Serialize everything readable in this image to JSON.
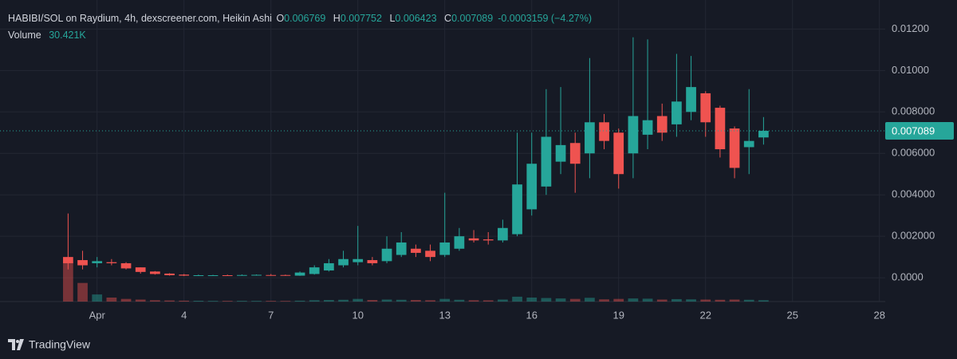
{
  "chart_data": {
    "type": "candlestick",
    "title": "HABIBI/SOL on Raydium, 4h, dexscreener.com, Heikin Ashi",
    "ohlc_keys": [
      "O",
      "H",
      "L",
      "C"
    ],
    "change_label": "-0.0003159 (−4.27%)",
    "x": [
      0,
      0.5,
      1,
      1.5,
      2,
      2.5,
      3,
      3.5,
      4,
      4.5,
      5,
      5.5,
      6,
      6.5,
      7,
      7.5,
      8,
      8.5,
      9,
      9.5,
      10,
      10.5,
      11,
      11.5,
      12,
      12.5,
      13,
      13.5,
      14,
      14.5,
      15,
      15.5,
      16,
      16.5,
      17,
      17.5,
      18,
      18.5,
      19,
      19.5,
      20,
      20.5,
      21,
      21.5,
      22,
      22.5,
      23,
      23.5,
      24
    ],
    "open": [
      0.001,
      0.00085,
      0.0007,
      0.00075,
      0.0007,
      0.0005,
      0.0003,
      0.0002,
      0.00015,
      0.0001,
      0.00011,
      0.00012,
      0.00011,
      0.00012,
      0.00013,
      0.00013,
      0.0001,
      0.00018,
      0.00035,
      0.0006,
      0.00075,
      0.00085,
      0.0008,
      0.0011,
      0.0014,
      0.0013,
      0.0011,
      0.0014,
      0.0019,
      0.00185,
      0.0018,
      0.0021,
      0.0033,
      0.0044,
      0.0056,
      0.0065,
      0.006,
      0.0075,
      0.007,
      0.006,
      0.0069,
      0.0078,
      0.0074,
      0.008,
      0.0089,
      0.0082,
      0.0072,
      0.0063,
      0.006769
    ],
    "high": [
      0.0031,
      0.0013,
      0.001,
      0.0009,
      0.00075,
      0.0005,
      0.00032,
      0.00022,
      0.00018,
      0.00015,
      0.00014,
      0.00015,
      0.00016,
      0.00016,
      0.00018,
      0.00015,
      0.0003,
      0.0006,
      0.0009,
      0.0013,
      0.0025,
      0.001,
      0.002,
      0.0022,
      0.0016,
      0.0016,
      0.0041,
      0.0024,
      0.0023,
      0.0022,
      0.0028,
      0.007,
      0.007,
      0.0091,
      0.0092,
      0.007,
      0.0106,
      0.0079,
      0.0072,
      0.0116,
      0.0115,
      0.0084,
      0.0108,
      0.0107,
      0.009,
      0.0083,
      0.0073,
      0.0091,
      0.007752
    ],
    "low": [
      0.0004,
      0.0004,
      0.0005,
      0.0006,
      0.0004,
      0.0002,
      0.00015,
      0.0001,
      8e-05,
      8e-05,
      9e-05,
      9e-05,
      0.0001,
      0.0001,
      0.0001,
      9e-05,
      9e-05,
      0.00015,
      0.0003,
      0.0005,
      0.0006,
      0.0006,
      0.0007,
      0.001,
      0.001,
      0.0008,
      0.001,
      0.0013,
      0.0017,
      0.0016,
      0.0017,
      0.002,
      0.003,
      0.004,
      0.005,
      0.0041,
      0.0048,
      0.0062,
      0.0043,
      0.0048,
      0.0062,
      0.0066,
      0.0068,
      0.0076,
      0.0068,
      0.0058,
      0.0048,
      0.005,
      0.006423
    ],
    "close": [
      0.0007,
      0.0006,
      0.0008,
      0.0007,
      0.00045,
      0.00028,
      0.00018,
      0.00012,
      0.0001,
      0.00012,
      0.00012,
      0.00011,
      0.00013,
      0.00014,
      0.00012,
      0.0001,
      0.00025,
      0.0005,
      0.0007,
      0.0009,
      0.0009,
      0.0007,
      0.0014,
      0.0017,
      0.0012,
      0.001,
      0.0017,
      0.002,
      0.0018,
      0.0018,
      0.0024,
      0.0045,
      0.0055,
      0.0068,
      0.0064,
      0.0055,
      0.0075,
      0.0066,
      0.005,
      0.0078,
      0.0076,
      0.007,
      0.0085,
      0.0092,
      0.0075,
      0.0062,
      0.0053,
      0.0066,
      0.007089
    ],
    "up_color": "#26a69a",
    "down_color": "#ef5350",
    "volume": {
      "name": "Volume",
      "value_label": "30.421K",
      "values": [
        900000,
        420000,
        160000,
        90000,
        60000,
        45000,
        30000,
        25000,
        20000,
        18000,
        15000,
        15000,
        16000,
        15000,
        15000,
        14000,
        20000,
        30000,
        35000,
        40000,
        60000,
        35000,
        45000,
        40000,
        35000,
        30000,
        60000,
        40000,
        30000,
        28000,
        45000,
        110000,
        90000,
        80000,
        70000,
        60000,
        85000,
        50000,
        60000,
        70000,
        65000,
        45000,
        55000,
        50000,
        45000,
        40000,
        45000,
        40000,
        30421
      ]
    },
    "xlim": [
      -2.35,
      28.2
    ],
    "xticks": [
      {
        "value": 1,
        "label": "Apr"
      },
      4,
      7,
      10,
      13,
      16,
      19,
      22,
      25,
      28
    ],
    "ylim": [
      -0.00115,
      0.0134
    ],
    "yticks": [
      {
        "value": 0,
        "label": "0.0000"
      },
      {
        "value": 0.002,
        "label": "0.002000"
      },
      {
        "value": 0.004,
        "label": "0.004000"
      },
      {
        "value": 0.006,
        "label": "0.006000"
      },
      {
        "value": 0.008,
        "label": "0.008000"
      },
      {
        "value": 0.01,
        "label": "0.01000"
      },
      {
        "value": 0.012,
        "label": "0.01200"
      }
    ],
    "grid": true
  },
  "footer": "TradingView"
}
